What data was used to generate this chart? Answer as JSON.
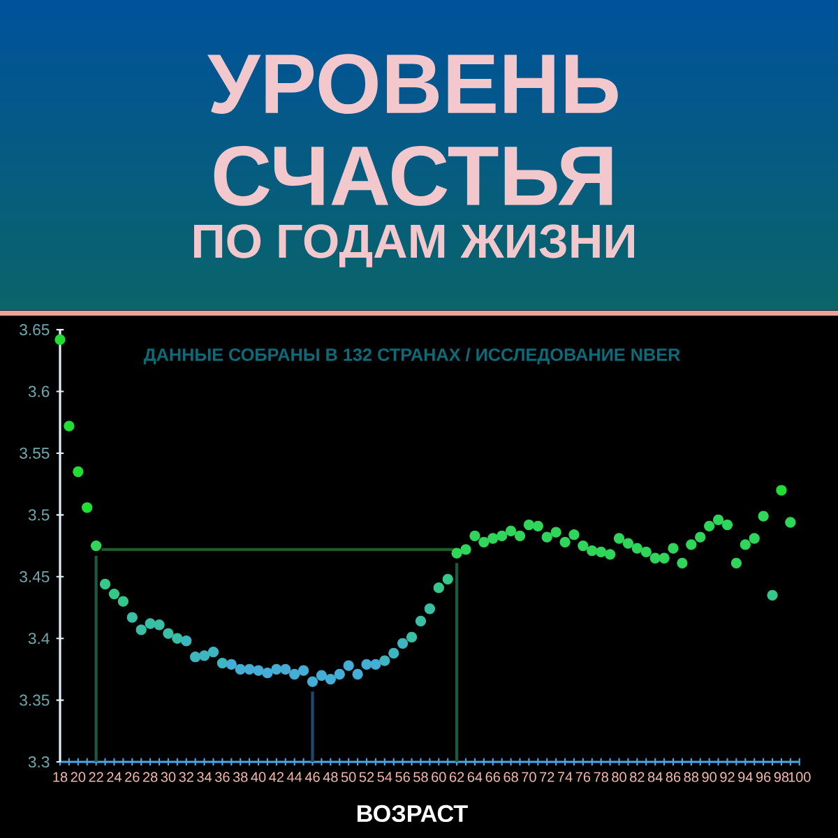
{
  "chart_data": {
    "type": "scatter",
    "title": "УРОВЕНЬ СЧАСТЬЯ",
    "subtitle": "ПО ГОДАМ ЖИЗНИ",
    "xlabel": "ВОЗРАСТ",
    "annotations": [
      "ДАННЫЕ СОБРАНЫ В 132 СТРАНАХ   /   ИССЛЕДОВАНИЕ NBER"
    ],
    "x": [
      18,
      19,
      20,
      21,
      22,
      23,
      24,
      25,
      26,
      27,
      28,
      29,
      30,
      31,
      32,
      33,
      34,
      35,
      36,
      37,
      38,
      39,
      40,
      41,
      42,
      43,
      44,
      45,
      46,
      47,
      48,
      49,
      50,
      51,
      52,
      53,
      54,
      55,
      56,
      57,
      58,
      59,
      60,
      61,
      62,
      63,
      64,
      65,
      66,
      67,
      68,
      69,
      70,
      71,
      72,
      73,
      74,
      75,
      76,
      77,
      78,
      79,
      80,
      81,
      82,
      83,
      84,
      85,
      86,
      87,
      88,
      89,
      90,
      91,
      92,
      93,
      94,
      95,
      96,
      97,
      98,
      99
    ],
    "values": [
      3.642,
      3.572,
      3.535,
      3.506,
      3.475,
      3.444,
      3.436,
      3.43,
      3.417,
      3.407,
      3.412,
      3.411,
      3.404,
      3.4,
      3.398,
      3.385,
      3.386,
      3.389,
      3.38,
      3.379,
      3.375,
      3.375,
      3.374,
      3.372,
      3.375,
      3.375,
      3.371,
      3.374,
      3.365,
      3.37,
      3.367,
      3.371,
      3.378,
      3.371,
      3.379,
      3.379,
      3.382,
      3.388,
      3.396,
      3.401,
      3.414,
      3.424,
      3.441,
      3.448,
      3.469,
      3.472,
      3.483,
      3.478,
      3.481,
      3.483,
      3.487,
      3.483,
      3.492,
      3.491,
      3.482,
      3.486,
      3.478,
      3.484,
      3.475,
      3.471,
      3.47,
      3.468,
      3.481,
      3.477,
      3.473,
      3.47,
      3.465,
      3.465,
      3.473,
      3.461,
      3.476,
      3.482,
      3.491,
      3.496,
      3.492,
      3.461,
      3.476,
      3.481,
      3.499,
      3.435,
      3.52,
      3.494
    ],
    "colors": [
      "#22dd33",
      "#22dd33",
      "#22dd33",
      "#22dd33",
      "#2fd65a",
      "#33c98a",
      "#33c98a",
      "#33c98a",
      "#39bfa5",
      "#39bfa5",
      "#39bfa5",
      "#39bfa5",
      "#39bfa5",
      "#39bfa5",
      "#3db6c0",
      "#3db6c0",
      "#3db6c0",
      "#3db6c0",
      "#3db6c0",
      "#44aed6",
      "#44aed6",
      "#44aed6",
      "#44aed6",
      "#44aed6",
      "#44aed6",
      "#44aed6",
      "#44aed6",
      "#44aed6",
      "#44aed6",
      "#44aed6",
      "#44aed6",
      "#44aed6",
      "#44aed6",
      "#44aed6",
      "#44aed6",
      "#44aed6",
      "#3db6c0",
      "#3db6c0",
      "#3db6c0",
      "#39bfa5",
      "#39bfa5",
      "#39bfa5",
      "#33c98a",
      "#33c98a",
      "#2fd65a",
      "#2fd65a",
      "#2fd65a",
      "#2fd65a",
      "#2fd65a",
      "#2fd65a",
      "#2fd65a",
      "#2fd65a",
      "#2fd65a",
      "#2fd65a",
      "#2fd65a",
      "#2fd65a",
      "#2fd65a",
      "#2fd65a",
      "#2fd65a",
      "#2fd65a",
      "#2fd65a",
      "#2fd65a",
      "#2fd65a",
      "#2fd65a",
      "#2fd65a",
      "#2fd65a",
      "#2fd65a",
      "#2fd65a",
      "#2fd65a",
      "#2fd65a",
      "#2fd65a",
      "#2fd65a",
      "#2fd65a",
      "#2fd65a",
      "#2fd65a",
      "#2fd65a",
      "#2fd65a",
      "#2fd65a",
      "#2fd65a",
      "#33c98a",
      "#22dd33",
      "#2fd65a"
    ],
    "marker": "circle",
    "xlim": [
      18,
      100
    ],
    "ylim": [
      3.3,
      3.65
    ],
    "xticks": [
      18,
      20,
      22,
      24,
      26,
      28,
      30,
      32,
      34,
      36,
      38,
      40,
      42,
      44,
      46,
      48,
      50,
      52,
      54,
      56,
      58,
      60,
      62,
      64,
      66,
      68,
      70,
      72,
      74,
      76,
      78,
      80,
      82,
      84,
      86,
      88,
      90,
      92,
      94,
      96,
      98,
      100
    ],
    "yticks": [
      3.3,
      3.35,
      3.4,
      3.45,
      3.5,
      3.55,
      3.6,
      3.65
    ],
    "ref_lines": [
      {
        "axis": "x",
        "value": 22,
        "color": "#1b5a40"
      },
      {
        "axis": "x",
        "value": 46,
        "color": "#1a4a70"
      },
      {
        "axis": "x",
        "value": 62,
        "color": "#1b5a40"
      },
      {
        "axis": "y",
        "value": 3.472,
        "color": "#1e5a2e"
      }
    ]
  }
}
